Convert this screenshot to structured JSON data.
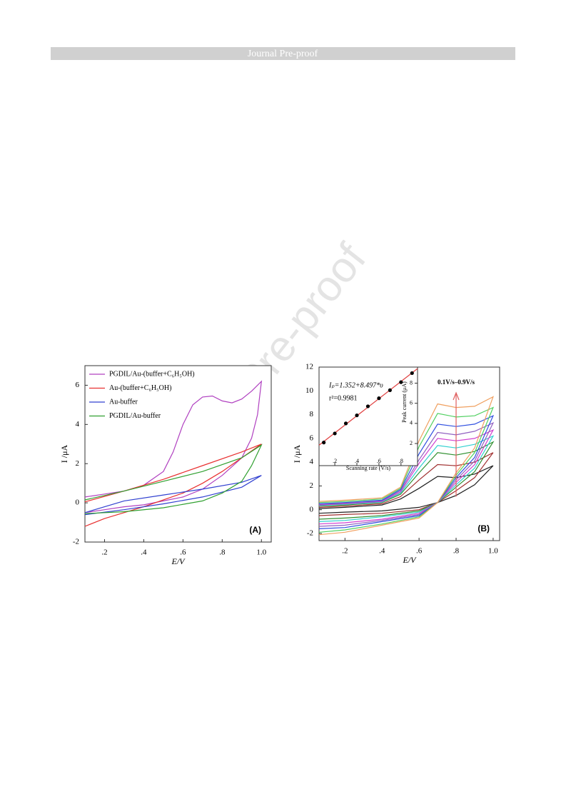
{
  "header": {
    "title": "Journal Pre-proof"
  },
  "watermark": "Journal Pre-proof",
  "chart_data": [
    {
      "type": "line",
      "x_label": "E/V",
      "y_label": "I /μA",
      "annotation": "(A)",
      "xlim": [
        0.1,
        1.05
      ],
      "ylim": [
        -2,
        7
      ],
      "xticks": [
        {
          "value": 0.2,
          "label": ".2"
        },
        {
          "value": 0.4,
          "label": ".4"
        },
        {
          "value": 0.6,
          "label": ".6"
        },
        {
          "value": 0.8,
          "label": ".8"
        },
        {
          "value": 1.0,
          "label": "1.0"
        }
      ],
      "yticks": [
        -2,
        0,
        2,
        4,
        6
      ],
      "legend": "upper left",
      "series": [
        {
          "name": "PGDIL/Au-(buffer+C₆H₅OH)",
          "color": "#b040c0",
          "x": [
            0.1,
            0.2,
            0.3,
            0.4,
            0.5,
            0.55,
            0.6,
            0.65,
            0.7,
            0.75,
            0.8,
            0.85,
            0.9,
            0.95,
            1.0,
            0.98,
            0.95,
            0.9,
            0.8,
            0.7,
            0.6,
            0.5,
            0.4,
            0.3,
            0.2,
            0.1
          ],
          "values": [
            0.3,
            0.45,
            0.6,
            0.9,
            1.6,
            2.6,
            4.0,
            5.0,
            5.4,
            5.45,
            5.2,
            5.1,
            5.3,
            5.7,
            6.2,
            4.5,
            3.3,
            2.3,
            1.4,
            0.7,
            0.3,
            0.1,
            -0.1,
            -0.2,
            -0.35,
            -0.5
          ]
        },
        {
          "name": "Au-(buffer+C₆H₅OH)",
          "color": "#e83030",
          "x": [
            0.1,
            0.3,
            0.5,
            0.7,
            0.9,
            1.0,
            0.9,
            0.8,
            0.7,
            0.6,
            0.4,
            0.2,
            0.1
          ],
          "values": [
            0.05,
            0.6,
            1.2,
            1.9,
            2.6,
            3.0,
            2.3,
            1.6,
            1.0,
            0.5,
            -0.2,
            -0.8,
            -1.2
          ]
        },
        {
          "name": "Au-buffer",
          "color": "#3040d0",
          "x": [
            0.1,
            0.3,
            0.5,
            0.7,
            0.9,
            1.0,
            0.9,
            0.7,
            0.5,
            0.3,
            0.1
          ],
          "values": [
            -0.5,
            0.1,
            0.4,
            0.7,
            1.05,
            1.4,
            0.8,
            0.3,
            -0.05,
            -0.35,
            -0.6
          ]
        },
        {
          "name": "PGDIL/Au-buffer",
          "color": "#30a030",
          "x": [
            0.1,
            0.3,
            0.5,
            0.7,
            0.9,
            1.0,
            0.95,
            0.9,
            0.8,
            0.7,
            0.5,
            0.3,
            0.1
          ],
          "values": [
            0.15,
            0.6,
            1.1,
            1.6,
            2.3,
            2.95,
            1.9,
            1.1,
            0.5,
            0.1,
            -0.25,
            -0.45,
            -0.55
          ]
        }
      ]
    },
    {
      "type": "line",
      "x_label": "E/V",
      "y_label": "I /μA",
      "annotation": "(B)",
      "arrow_label": "0.1V/s–0.9V/s",
      "xlim": [
        0.06,
        1.035
      ],
      "ylim": [
        -2.6,
        12
      ],
      "xticks": [
        {
          "value": 0.2,
          "label": ".2"
        },
        {
          "value": 0.4,
          "label": ".4"
        },
        {
          "value": 0.6,
          "label": ".6"
        },
        {
          "value": 0.8,
          "label": ".8"
        },
        {
          "value": 1.0,
          "label": "1.0"
        }
      ],
      "yticks": [
        -2,
        0,
        2,
        4,
        6,
        8,
        10,
        12
      ],
      "series": [
        {
          "color": "#202020",
          "x": [
            0.06,
            0.2,
            0.4,
            0.5,
            0.6,
            0.7,
            0.8,
            0.9,
            1.0,
            0.9,
            0.8,
            0.7,
            0.6,
            0.4,
            0.2,
            0.06
          ],
          "values": [
            0.1,
            0.2,
            0.4,
            0.9,
            1.8,
            2.8,
            2.7,
            3.0,
            3.7,
            2.1,
            1.2,
            0.6,
            0.2,
            -0.1,
            -0.2,
            -0.3
          ]
        },
        {
          "color": "#a03030",
          "x": [
            0.06,
            0.2,
            0.4,
            0.5,
            0.6,
            0.7,
            0.8,
            0.9,
            1.0,
            0.9,
            0.8,
            0.7,
            0.6,
            0.4,
            0.2,
            0.06
          ],
          "values": [
            0.2,
            0.3,
            0.5,
            1.1,
            2.5,
            3.8,
            3.7,
            4.0,
            4.8,
            2.7,
            1.6,
            0.6,
            0.0,
            -0.3,
            -0.4,
            -0.5
          ]
        },
        {
          "color": "#309030",
          "x": [
            0.06,
            0.2,
            0.4,
            0.5,
            0.6,
            0.7,
            0.8,
            0.9,
            1.0,
            0.9,
            0.8,
            0.7,
            0.6,
            0.4,
            0.2,
            0.06
          ],
          "values": [
            0.3,
            0.4,
            0.6,
            1.3,
            3.1,
            4.8,
            4.6,
            4.9,
            5.7,
            3.2,
            1.9,
            0.6,
            -0.1,
            -0.5,
            -0.7,
            -0.8
          ]
        },
        {
          "color": "#30d0d0",
          "x": [
            0.06,
            0.2,
            0.4,
            0.5,
            0.6,
            0.7,
            0.8,
            0.9,
            1.0,
            0.9,
            0.8,
            0.7,
            0.6,
            0.4,
            0.2,
            0.06
          ],
          "values": [
            0.35,
            0.45,
            0.65,
            1.4,
            3.5,
            5.4,
            5.2,
            5.5,
            6.2,
            3.5,
            2.1,
            0.6,
            -0.2,
            -0.6,
            -0.9,
            -1.0
          ]
        },
        {
          "color": "#d040d0",
          "x": [
            0.06,
            0.2,
            0.4,
            0.5,
            0.6,
            0.7,
            0.8,
            0.9,
            1.0,
            0.9,
            0.8,
            0.7,
            0.6,
            0.4,
            0.2,
            0.06
          ],
          "values": [
            0.4,
            0.5,
            0.7,
            1.5,
            3.9,
            6.0,
            5.8,
            6.0,
            6.7,
            3.8,
            2.3,
            0.6,
            -0.3,
            -0.8,
            -1.1,
            -1.2
          ]
        },
        {
          "color": "#9060c0",
          "x": [
            0.06,
            0.2,
            0.4,
            0.5,
            0.6,
            0.7,
            0.8,
            0.9,
            1.0,
            0.9,
            0.8,
            0.7,
            0.6,
            0.4,
            0.2,
            0.06
          ],
          "values": [
            0.45,
            0.55,
            0.75,
            1.6,
            4.2,
            6.5,
            6.3,
            6.6,
            7.3,
            4.1,
            2.5,
            0.6,
            -0.4,
            -0.9,
            -1.3,
            -1.4
          ]
        },
        {
          "color": "#3050e0",
          "x": [
            0.06,
            0.2,
            0.4,
            0.5,
            0.6,
            0.7,
            0.8,
            0.9,
            1.0,
            0.9,
            0.8,
            0.7,
            0.6,
            0.4,
            0.2,
            0.06
          ],
          "values": [
            0.5,
            0.6,
            0.8,
            1.7,
            4.7,
            7.2,
            7.0,
            7.2,
            7.9,
            4.4,
            2.7,
            0.6,
            -0.5,
            -1.0,
            -1.5,
            -1.6
          ]
        },
        {
          "color": "#50d060",
          "x": [
            0.06,
            0.2,
            0.4,
            0.5,
            0.6,
            0.7,
            0.8,
            0.9,
            1.0,
            0.9,
            0.8,
            0.7,
            0.6,
            0.4,
            0.2,
            0.06
          ],
          "values": [
            0.6,
            0.7,
            0.9,
            1.8,
            5.3,
            8.1,
            7.8,
            7.9,
            8.6,
            4.8,
            2.9,
            0.6,
            -0.6,
            -1.2,
            -1.7,
            -1.9
          ]
        },
        {
          "color": "#f0a060",
          "x": [
            0.06,
            0.2,
            0.4,
            0.5,
            0.6,
            0.7,
            0.8,
            0.9,
            1.0,
            0.9,
            0.8,
            0.7,
            0.6,
            0.4,
            0.2,
            0.06
          ],
          "values": [
            0.7,
            0.8,
            1.0,
            1.9,
            5.8,
            8.9,
            8.6,
            8.7,
            9.5,
            5.2,
            3.1,
            0.6,
            -0.7,
            -1.3,
            -1.9,
            -2.1
          ]
        }
      ]
    },
    {
      "type": "scatter",
      "x_label": "Scanning rate (V/s)",
      "y_label": "Peak current (μA)",
      "equation": "Iₚ=1.352+8.497*υ",
      "r_squared": "r²=0.9981",
      "xlim": [
        0.057,
        0.95
      ],
      "ylim": [
        -0.2,
        9.6
      ],
      "y_axis_side": "right",
      "xticks": [
        {
          "value": 0.2,
          "label": ".2"
        },
        {
          "value": 0.4,
          "label": ".4"
        },
        {
          "value": 0.6,
          "label": ".6"
        },
        {
          "value": 0.8,
          "label": ".8"
        }
      ],
      "yticks": [
        2,
        4,
        6,
        8
      ],
      "marker_color": "#000000",
      "fit_color": "#e04040",
      "x": [
        0.1,
        0.2,
        0.3,
        0.4,
        0.5,
        0.6,
        0.7,
        0.8,
        0.9
      ],
      "values": [
        2.1,
        3.0,
        4.0,
        4.8,
        5.7,
        6.5,
        7.3,
        8.1,
        9.0
      ]
    }
  ]
}
